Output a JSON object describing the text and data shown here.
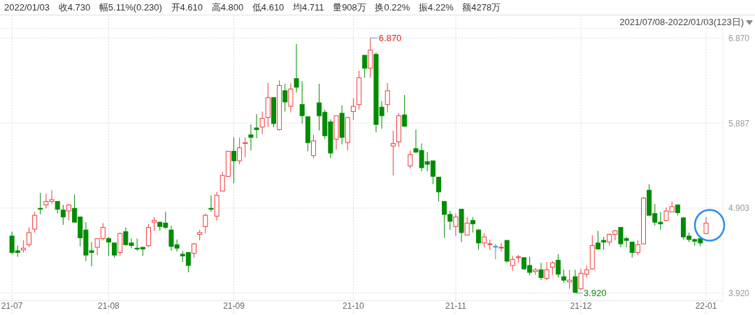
{
  "chart_data": {
    "type": "candlestick",
    "subtitle": "2021/07/08-2022/01/03(123日)",
    "title": "2022/01/03 收4.730 幅5.11%(0.230) 开4.610 高4.800 低4.610 均4.711 量908万 换0.22% 振4.22% 额4278万",
    "annotations": [
      "6.870",
      "3.920"
    ],
    "categories": [
      "21-07",
      null,
      null,
      null,
      null,
      null,
      null,
      null,
      null,
      null,
      null,
      null,
      null,
      null,
      null,
      null,
      null,
      "21-08",
      null,
      null,
      null,
      null,
      null,
      null,
      null,
      null,
      null,
      null,
      null,
      null,
      null,
      null,
      null,
      null,
      null,
      null,
      null,
      null,
      null,
      "21-09",
      null,
      null,
      null,
      null,
      null,
      null,
      null,
      null,
      null,
      null,
      null,
      null,
      null,
      null,
      null,
      null,
      null,
      null,
      null,
      null,
      "21-10",
      null,
      null,
      null,
      null,
      null,
      null,
      null,
      null,
      null,
      null,
      null,
      null,
      null,
      null,
      null,
      null,
      null,
      "21-11",
      null,
      null,
      null,
      null,
      null,
      null,
      null,
      null,
      null,
      null,
      null,
      null,
      null,
      null,
      null,
      null,
      null,
      null,
      null,
      null,
      null,
      "21-12",
      null,
      null,
      null,
      null,
      null,
      null,
      null,
      null,
      null,
      null,
      null,
      null,
      null,
      null,
      null,
      null,
      null,
      null,
      null,
      null,
      null,
      "22-01"
    ],
    "ohlc": [
      [
        4.58,
        4.63,
        4.37,
        4.39
      ],
      [
        4.41,
        4.47,
        4.34,
        4.39
      ],
      [
        4.42,
        4.53,
        4.39,
        4.44
      ],
      [
        4.48,
        4.68,
        4.45,
        4.62
      ],
      [
        4.66,
        4.86,
        4.62,
        4.82
      ],
      [
        4.9,
        5.08,
        4.83,
        4.89
      ],
      [
        4.94,
        5.07,
        4.9,
        4.98
      ],
      [
        4.98,
        5.11,
        4.95,
        5.0
      ],
      [
        4.98,
        4.98,
        4.84,
        4.89
      ],
      [
        4.88,
        4.94,
        4.71,
        4.8
      ],
      [
        4.87,
        4.95,
        4.76,
        4.94
      ],
      [
        4.9,
        5.06,
        4.74,
        4.74
      ],
      [
        4.8,
        4.8,
        4.46,
        4.56
      ],
      [
        4.65,
        4.74,
        4.29,
        4.36
      ],
      [
        4.41,
        4.51,
        4.23,
        4.39
      ],
      [
        4.45,
        4.55,
        4.36,
        4.55
      ],
      [
        4.55,
        4.73,
        4.53,
        4.68
      ],
      [
        4.55,
        4.57,
        4.35,
        4.51
      ],
      [
        4.5,
        4.5,
        4.33,
        4.36
      ],
      [
        4.39,
        4.62,
        4.35,
        4.61
      ],
      [
        4.63,
        4.68,
        4.47,
        4.48
      ],
      [
        4.5,
        4.55,
        4.44,
        4.47
      ],
      [
        4.44,
        4.55,
        4.41,
        4.43
      ],
      [
        4.45,
        4.45,
        4.35,
        4.43
      ],
      [
        4.47,
        4.72,
        4.45,
        4.68
      ],
      [
        4.74,
        4.8,
        4.64,
        4.76
      ],
      [
        4.74,
        4.74,
        4.64,
        4.69
      ],
      [
        4.73,
        4.86,
        4.66,
        4.68
      ],
      [
        4.65,
        4.7,
        4.41,
        4.46
      ],
      [
        4.48,
        4.54,
        4.4,
        4.44
      ],
      [
        4.37,
        4.41,
        4.28,
        4.35
      ],
      [
        4.39,
        4.39,
        4.16,
        4.24
      ],
      [
        4.38,
        4.5,
        4.33,
        4.49
      ],
      [
        4.6,
        4.65,
        4.53,
        4.62
      ],
      [
        4.69,
        4.84,
        4.61,
        4.82
      ],
      [
        4.9,
        5.05,
        4.86,
        4.89
      ],
      [
        4.81,
        5.09,
        4.76,
        5.05
      ],
      [
        5.1,
        5.32,
        5.1,
        5.28
      ],
      [
        5.27,
        5.56,
        5.27,
        5.56
      ],
      [
        5.56,
        5.72,
        5.19,
        5.45
      ],
      [
        5.45,
        5.72,
        5.41,
        5.6
      ],
      [
        5.65,
        5.72,
        5.49,
        5.66
      ],
      [
        5.75,
        5.87,
        5.57,
        5.72
      ],
      [
        5.83,
        5.99,
        5.71,
        5.81
      ],
      [
        5.84,
        6.02,
        5.76,
        5.94
      ],
      [
        5.95,
        6.35,
        5.84,
        6.18
      ],
      [
        6.18,
        6.18,
        5.84,
        5.88
      ],
      [
        5.81,
        6.38,
        5.8,
        6.32
      ],
      [
        6.26,
        6.34,
        6.02,
        6.13
      ],
      [
        6.08,
        6.35,
        6.01,
        6.28
      ],
      [
        6.4,
        6.8,
        6.24,
        6.3
      ],
      [
        6.1,
        6.37,
        5.88,
        5.97
      ],
      [
        5.96,
        5.96,
        5.56,
        5.66
      ],
      [
        5.51,
        5.75,
        5.48,
        5.68
      ],
      [
        6.12,
        6.34,
        5.8,
        5.97
      ],
      [
        6.01,
        6.04,
        5.7,
        5.74
      ],
      [
        5.9,
        5.93,
        5.48,
        5.54
      ],
      [
        5.7,
        5.97,
        5.58,
        5.97
      ],
      [
        6.0,
        6.09,
        5.64,
        5.72
      ],
      [
        5.66,
        5.96,
        5.57,
        5.95
      ],
      [
        6.02,
        6.17,
        5.92,
        6.08
      ],
      [
        6.1,
        6.49,
        6.04,
        6.41
      ],
      [
        6.67,
        6.67,
        6.41,
        6.52
      ],
      [
        6.52,
        6.87,
        6.41,
        6.73
      ],
      [
        6.68,
        6.7,
        5.78,
        5.87
      ],
      [
        6.07,
        6.14,
        5.82,
        5.97
      ],
      [
        6.1,
        6.35,
        6.01,
        6.26
      ],
      [
        5.62,
        5.8,
        5.28,
        5.65
      ],
      [
        5.67,
        6.0,
        5.61,
        5.97
      ],
      [
        5.98,
        6.21,
        5.84,
        5.85
      ],
      [
        5.39,
        5.57,
        5.36,
        5.52
      ],
      [
        5.59,
        5.81,
        5.54,
        5.55
      ],
      [
        5.57,
        5.65,
        5.33,
        5.37
      ],
      [
        5.44,
        5.55,
        5.33,
        5.41
      ],
      [
        5.45,
        5.45,
        5.18,
        5.27
      ],
      [
        5.26,
        5.26,
        4.98,
        5.09
      ],
      [
        4.98,
        4.98,
        4.56,
        4.83
      ],
      [
        4.83,
        4.87,
        4.65,
        4.75
      ],
      [
        4.69,
        4.84,
        4.58,
        4.8
      ],
      [
        4.89,
        4.89,
        4.51,
        4.62
      ],
      [
        4.59,
        4.8,
        4.59,
        4.73
      ],
      [
        4.76,
        4.8,
        4.62,
        4.72
      ],
      [
        4.65,
        4.66,
        4.42,
        4.5
      ],
      [
        4.5,
        4.61,
        4.45,
        4.57
      ],
      [
        4.49,
        4.54,
        4.42,
        4.49
      ],
      [
        4.46,
        4.49,
        4.31,
        4.46
      ],
      [
        4.45,
        4.5,
        4.4,
        4.45
      ],
      [
        4.53,
        4.53,
        4.27,
        4.29
      ],
      [
        4.24,
        4.35,
        4.18,
        4.31
      ],
      [
        4.33,
        4.36,
        4.27,
        4.34
      ],
      [
        4.33,
        4.33,
        4.19,
        4.2
      ],
      [
        4.24,
        4.34,
        4.13,
        4.16
      ],
      [
        4.17,
        4.21,
        4.13,
        4.19
      ],
      [
        4.19,
        4.27,
        4.07,
        4.1
      ],
      [
        4.09,
        4.28,
        4.07,
        4.19
      ],
      [
        4.22,
        4.29,
        4.13,
        4.27
      ],
      [
        4.3,
        4.37,
        4.1,
        4.14
      ],
      [
        4.11,
        4.19,
        4.04,
        4.07
      ],
      [
        4.05,
        4.19,
        3.97,
        4.07
      ],
      [
        4.11,
        4.19,
        3.92,
        3.93
      ],
      [
        3.97,
        4.2,
        3.96,
        4.15
      ],
      [
        4.14,
        4.24,
        4.1,
        4.19
      ],
      [
        4.2,
        4.59,
        4.19,
        4.47
      ],
      [
        4.5,
        4.64,
        4.43,
        4.43
      ],
      [
        4.53,
        4.57,
        4.42,
        4.51
      ],
      [
        4.51,
        4.61,
        4.47,
        4.6
      ],
      [
        4.6,
        4.65,
        4.53,
        4.64
      ],
      [
        4.68,
        4.68,
        4.45,
        4.49
      ],
      [
        4.55,
        4.57,
        4.45,
        4.53
      ],
      [
        4.51,
        4.51,
        4.33,
        4.39
      ],
      [
        4.39,
        4.53,
        4.36,
        4.48
      ],
      [
        4.49,
        5.03,
        4.49,
        5.02
      ],
      [
        5.11,
        5.18,
        4.82,
        4.82
      ],
      [
        4.84,
        4.95,
        4.7,
        4.74
      ],
      [
        4.74,
        4.86,
        4.65,
        4.72
      ],
      [
        4.76,
        4.91,
        4.75,
        4.87
      ],
      [
        4.86,
        4.98,
        4.86,
        4.92
      ],
      [
        4.94,
        4.94,
        4.82,
        4.85
      ],
      [
        4.79,
        4.8,
        4.54,
        4.57
      ],
      [
        4.58,
        4.62,
        4.51,
        4.54
      ],
      [
        4.54,
        4.55,
        4.47,
        4.52
      ],
      [
        4.55,
        4.55,
        4.46,
        4.5
      ],
      [
        4.61,
        4.8,
        4.61,
        4.73
      ]
    ],
    "colors": [
      "#008c00",
      "#008c00",
      "#f23b3b",
      "#f23b3b",
      "#f23b3b",
      "#008c00",
      "#f23b3b",
      "#f23b3b",
      "#008c00",
      "#008c00",
      "#f23b3b",
      "#008c00",
      "#008c00",
      "#008c00",
      "#008c00",
      "#f23b3b",
      "#f23b3b",
      "#008c00",
      "#008c00",
      "#f23b3b",
      "#008c00",
      "#008c00",
      "#008c00",
      "#008c00",
      "#f23b3b",
      "#f23b3b",
      "#008c00",
      "#008c00",
      "#008c00",
      "#008c00",
      "#008c00",
      "#008c00",
      "#f23b3b",
      "#f23b3b",
      "#f23b3b",
      "#008c00",
      "#f23b3b",
      "#f23b3b",
      "#f23b3b",
      "#008c00",
      "#f23b3b",
      "#f23b3b",
      "#008c00",
      "#008c00",
      "#f23b3b",
      "#f23b3b",
      "#008c00",
      "#f23b3b",
      "#008c00",
      "#f23b3b",
      "#008c00",
      "#008c00",
      "#008c00",
      "#f23b3b",
      "#008c00",
      "#008c00",
      "#008c00",
      "#f23b3b",
      "#008c00",
      "#f23b3b",
      "#f23b3b",
      "#f23b3b",
      "#008c00",
      "#f23b3b",
      "#008c00",
      "#008c00",
      "#f23b3b",
      "#f23b3b",
      "#f23b3b",
      "#008c00",
      "#f23b3b",
      "#008c00",
      "#008c00",
      "#008c00",
      "#008c00",
      "#008c00",
      "#008c00",
      "#008c00",
      "#f23b3b",
      "#008c00",
      "#f23b3b",
      "#008c00",
      "#008c00",
      "#f23b3b",
      "#f23b3b",
      "#3d8fe0",
      "#f23b3b",
      "#008c00",
      "#f23b3b",
      "#f23b3b",
      "#008c00",
      "#008c00",
      "#f23b3b",
      "#008c00",
      "#f23b3b",
      "#f23b3b",
      "#008c00",
      "#008c00",
      "#f23b3b",
      "#008c00",
      "#f23b3b",
      "#f23b3b",
      "#f23b3b",
      "#008c00",
      "#008c00",
      "#f23b3b",
      "#f23b3b",
      "#008c00",
      "#008c00",
      "#008c00",
      "#f23b3b",
      "#f23b3b",
      "#008c00",
      "#008c00",
      "#008c00",
      "#f23b3b",
      "#f23b3b",
      "#008c00",
      "#008c00",
      "#008c00",
      "#008c00",
      "#008c00",
      "#f23b3b"
    ],
    "ylim": [
      3.84,
      6.98
    ],
    "yticks": [
      {
        "value": 3.92,
        "label": "3.920"
      },
      {
        "value": 4.903,
        "label": "4.903"
      },
      {
        "value": 5.887,
        "label": "5.887"
      },
      {
        "value": 6.87,
        "label": "6.870"
      }
    ],
    "grid": true
  }
}
